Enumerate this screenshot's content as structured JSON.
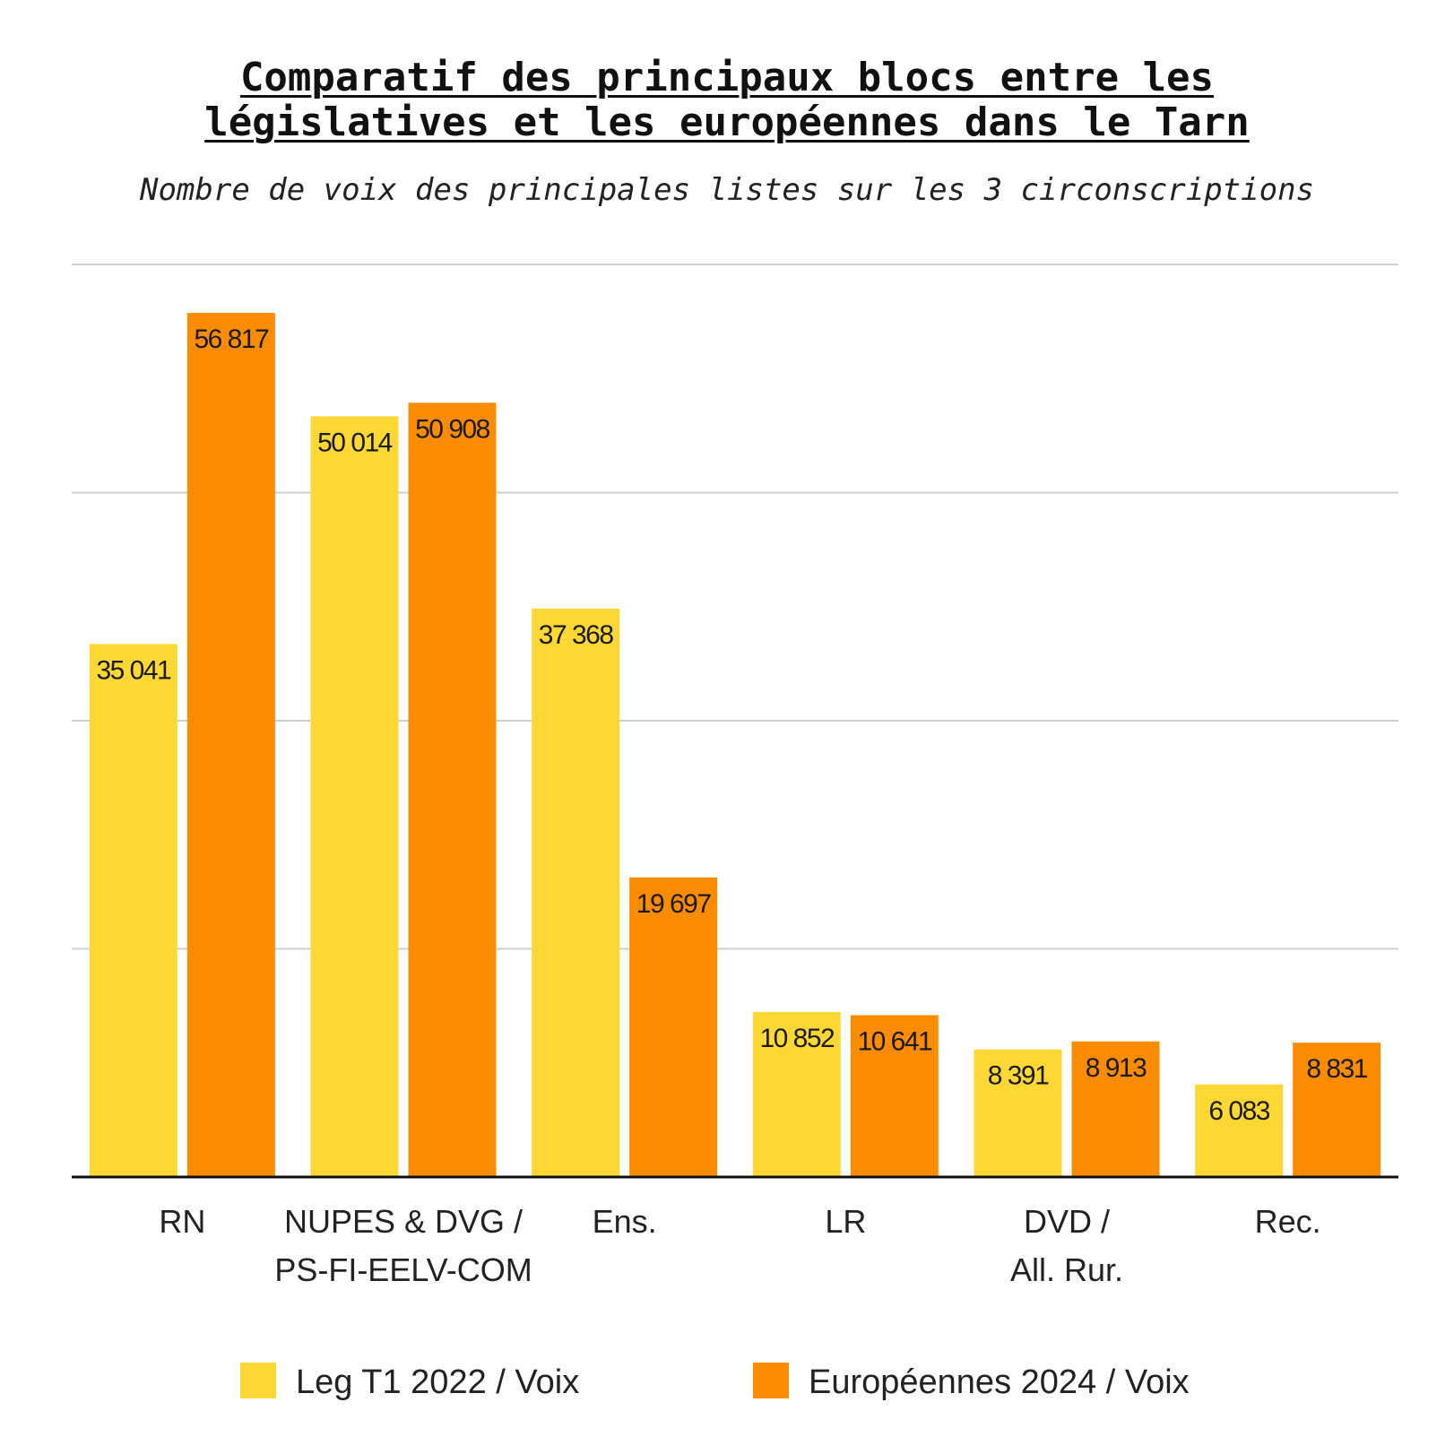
{
  "chart_data": {
    "type": "bar",
    "title": "Comparatif des principaux blocs entre les\nlégislatives et les européennes dans le Tarn",
    "subtitle": "Nombre de voix des principales listes sur les 3 circonscriptions",
    "categories": [
      [
        "RN"
      ],
      [
        "NUPES & DVG /",
        "PS-FI-EELV-COM"
      ],
      [
        "Ens."
      ],
      [
        "LR"
      ],
      [
        "DVD /",
        "All. Rur."
      ],
      [
        "Rec."
      ]
    ],
    "series": [
      {
        "name": "Leg T1 2022 / Voix",
        "color": "#FDD835",
        "values": [
          35041,
          50014,
          37368,
          10852,
          8391,
          6083
        ],
        "labels": [
          "35 041",
          "50 014",
          "37 368",
          "10 852",
          "8 391",
          "6 083"
        ]
      },
      {
        "name": "Européennes  2024 / Voix",
        "color": "#FB8C00",
        "values": [
          56817,
          50908,
          19697,
          10641,
          8913,
          8831
        ],
        "labels": [
          "56 817",
          "50 908",
          "19 697",
          "10 641",
          "8 913",
          "8 831"
        ]
      }
    ],
    "ylim": [
      0,
      60000
    ],
    "grid": true,
    "legend_position": "bottom"
  }
}
